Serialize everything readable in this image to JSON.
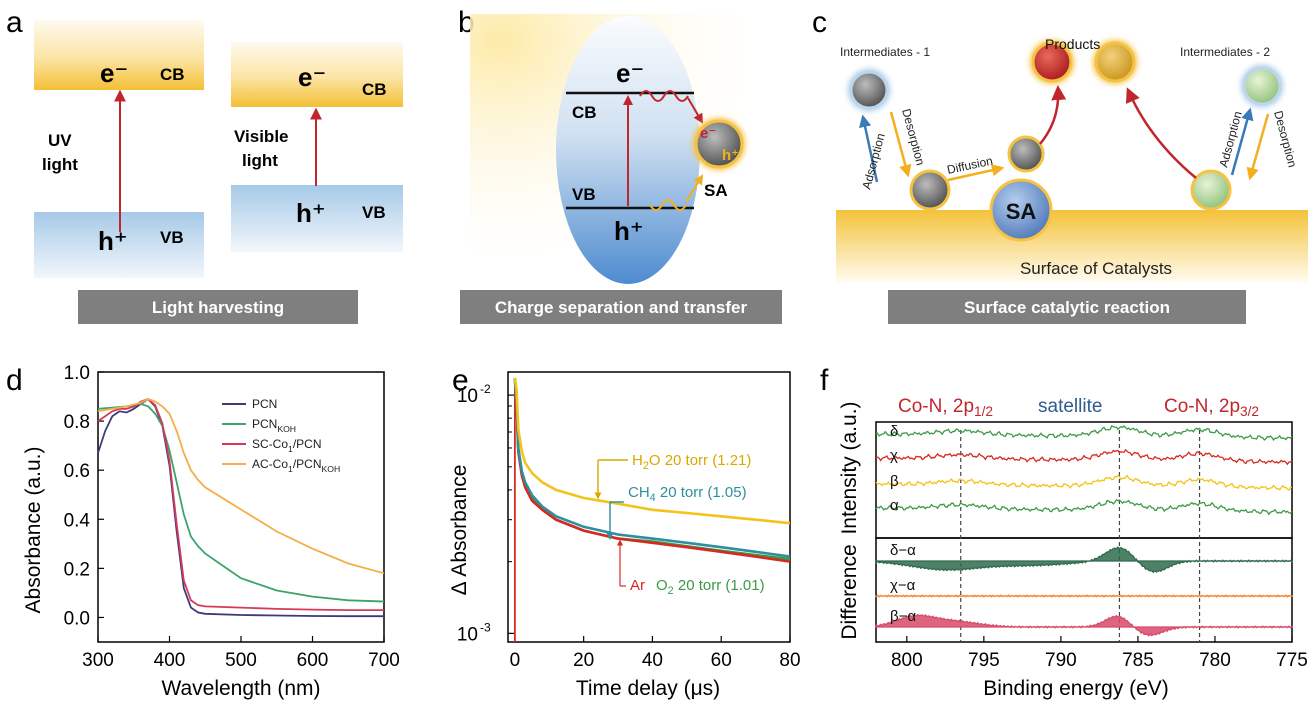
{
  "panels": {
    "a": {
      "label": "a",
      "caption": "Light harvesting",
      "uv": {
        "cb": "CB",
        "vb": "VB",
        "electron": "e⁻",
        "hole": "h⁺",
        "light_line1": "UV",
        "light_line2": "light"
      },
      "visible": {
        "cb": "CB",
        "vb": "VB",
        "electron": "e⁻",
        "hole": "h⁺",
        "light_line1": "Visible",
        "light_line2": "light"
      }
    },
    "b": {
      "label": "b",
      "caption": "Charge separation and transfer",
      "cb": "CB",
      "vb": "VB",
      "electron": "e⁻",
      "hole": "h⁺",
      "sa_electron": "e⁻",
      "sa_hole": "h⁺",
      "sa": "SA"
    },
    "c": {
      "label": "c",
      "caption": "Surface catalytic reaction",
      "products": "Products",
      "intermediates1": "Intermediates - 1",
      "intermediates2": "Intermediates - 2",
      "adsorption_left": "Adsorption",
      "desorption_left": "Desorption",
      "diffusion": "Diffusion",
      "adsorption_right": "Adsorption",
      "desorption_right": "Desorption",
      "sa": "SA",
      "surface": "Surface of Catalysts"
    },
    "d": {
      "label": "d"
    },
    "e": {
      "label": "e"
    },
    "f": {
      "label": "f"
    }
  },
  "colors": {
    "bar": "#7f7f7f",
    "cb_gold": "#f5c242",
    "vb_blue": "#a9cbe6",
    "arrow_red": "#c0272d",
    "sa_blue": "#6f93c9"
  },
  "chart_data": [
    {
      "id": "d",
      "type": "line",
      "xlabel": "Wavelength (nm)",
      "ylabel": "Absorbance (a.u.)",
      "xlim": [
        300,
        700
      ],
      "ylim": [
        -0.1,
        1.0
      ],
      "xticks": [
        300,
        400,
        500,
        600,
        700
      ],
      "yticks": [
        0.0,
        0.2,
        0.4,
        0.6,
        0.8,
        1.0
      ],
      "xtick_labels": [
        "300",
        "400",
        "500",
        "600",
        "700"
      ],
      "ytick_labels": [
        "0.0",
        "0.2",
        "0.4",
        "0.6",
        "0.8",
        "1.0"
      ],
      "legend_position": "top-right",
      "series": [
        {
          "name": "PCN",
          "name_main": "PCN",
          "name_sub": "",
          "name_tail": "",
          "color": "#3d3a7a",
          "x": [
            300,
            310,
            320,
            330,
            340,
            350,
            360,
            370,
            380,
            390,
            400,
            410,
            420,
            430,
            440,
            450,
            500,
            550,
            600,
            650,
            700
          ],
          "y": [
            0.67,
            0.76,
            0.82,
            0.84,
            0.835,
            0.85,
            0.87,
            0.89,
            0.86,
            0.78,
            0.62,
            0.35,
            0.12,
            0.04,
            0.02,
            0.015,
            0.01,
            0.008,
            0.006,
            0.005,
            0.005
          ]
        },
        {
          "name": "PCNKOH",
          "name_main": "PCN",
          "name_sub": "KOH",
          "name_tail": "",
          "color": "#3da36a",
          "x": [
            300,
            320,
            340,
            360,
            370,
            380,
            390,
            400,
            410,
            420,
            430,
            440,
            450,
            470,
            500,
            550,
            600,
            650,
            700
          ],
          "y": [
            0.85,
            0.855,
            0.86,
            0.87,
            0.86,
            0.83,
            0.78,
            0.68,
            0.55,
            0.42,
            0.33,
            0.29,
            0.26,
            0.22,
            0.16,
            0.11,
            0.085,
            0.07,
            0.065
          ]
        },
        {
          "name": "SC-Co1/PCN",
          "name_main": "SC-Co",
          "name_sub": "1",
          "name_tail": "/PCN",
          "color": "#d63a5a",
          "x": [
            300,
            310,
            320,
            330,
            340,
            350,
            360,
            370,
            380,
            390,
            400,
            410,
            420,
            430,
            440,
            450,
            500,
            550,
            600,
            650,
            700
          ],
          "y": [
            0.8,
            0.82,
            0.84,
            0.85,
            0.85,
            0.86,
            0.88,
            0.89,
            0.865,
            0.79,
            0.64,
            0.38,
            0.15,
            0.07,
            0.05,
            0.045,
            0.04,
            0.035,
            0.032,
            0.03,
            0.03
          ]
        },
        {
          "name": "AC-Co1/PCNKOH",
          "name_main": "AC-Co",
          "name_sub": "1",
          "name_tail": "/PCN",
          "name_sub2": "KOH",
          "color": "#f5ad45",
          "x": [
            300,
            320,
            340,
            360,
            370,
            380,
            390,
            400,
            410,
            420,
            430,
            440,
            450,
            500,
            550,
            600,
            650,
            700
          ],
          "y": [
            0.84,
            0.85,
            0.86,
            0.875,
            0.89,
            0.88,
            0.86,
            0.83,
            0.76,
            0.67,
            0.6,
            0.56,
            0.53,
            0.44,
            0.35,
            0.28,
            0.22,
            0.18
          ]
        }
      ]
    },
    {
      "id": "e",
      "type": "line",
      "xlabel": "Time delay (μs)",
      "ylabel": "Δ Absorbance",
      "xlim": [
        -2,
        80
      ],
      "ylim": [
        0.00092,
        0.0125
      ],
      "yscale": "log",
      "xticks": [
        0,
        20,
        40,
        60,
        80
      ],
      "xtick_labels": [
        "0",
        "20",
        "40",
        "60",
        "80"
      ],
      "ytick_labels": [
        {
          "base": "10",
          "exp": "-2",
          "value": 0.01
        },
        {
          "base": "10",
          "exp": "-3",
          "value": 0.001
        }
      ],
      "series": [
        {
          "name": "H2O 20 torr (1.21)",
          "color": "#f2c318",
          "x": [
            0.5,
            1,
            2,
            3,
            5,
            8,
            12,
            20,
            30,
            40,
            50,
            60,
            70,
            80
          ],
          "y": [
            0.0105,
            0.0072,
            0.0058,
            0.0052,
            0.0047,
            0.0043,
            0.004,
            0.0037,
            0.0035,
            0.0033,
            0.0032,
            0.0031,
            0.003,
            0.0029
          ]
        },
        {
          "name": "CH4 20 torr (1.05)",
          "color": "#2d8fa0",
          "x": [
            0.5,
            1,
            2,
            3,
            5,
            8,
            12,
            20,
            30,
            40,
            50,
            60,
            70,
            80
          ],
          "y": [
            0.0095,
            0.006,
            0.0048,
            0.0043,
            0.0038,
            0.0034,
            0.0031,
            0.0028,
            0.0026,
            0.0025,
            0.0024,
            0.0023,
            0.0022,
            0.0021
          ]
        },
        {
          "name": "Ar",
          "color": "#d62a20",
          "x": [
            0.5,
            1,
            2,
            3,
            5,
            8,
            12,
            20,
            30,
            40,
            50,
            60,
            70,
            80
          ],
          "y": [
            0.009,
            0.0058,
            0.0046,
            0.0041,
            0.0036,
            0.0033,
            0.003,
            0.0027,
            0.0025,
            0.0024,
            0.0023,
            0.0022,
            0.0021,
            0.002
          ]
        },
        {
          "name": "O2 20 torr (1.01)",
          "color": "#3a9a48",
          "x": [
            0.5,
            1,
            2,
            3,
            5,
            8,
            12,
            20,
            30,
            40,
            50,
            60,
            70,
            80
          ],
          "y": [
            0.0092,
            0.0059,
            0.0047,
            0.0042,
            0.0037,
            0.0033,
            0.003,
            0.0027,
            0.0025,
            0.00243,
            0.00232,
            0.00222,
            0.00213,
            0.00205
          ]
        }
      ],
      "annotations": [
        {
          "main": "H",
          "sub": "2",
          "tail": "O 20 torr (1.21)",
          "color": "#d9a800"
        },
        {
          "main": "CH",
          "sub": "4",
          "tail": " 20 torr (1.05)",
          "color": "#2d8fa0"
        },
        {
          "main": "Ar",
          "sub": "",
          "tail": "",
          "color": "#d62a20"
        },
        {
          "main": "O",
          "sub": "2",
          "tail": " 20 torr (1.01)",
          "color": "#3a9a48"
        }
      ]
    },
    {
      "id": "f",
      "type": "line",
      "xlabel": "Binding energy (eV)",
      "ylabel_top": "Intensity (a.u.)",
      "ylabel_bottom": "Difference",
      "xlim": [
        802,
        775
      ],
      "xticks": [
        800,
        795,
        790,
        785,
        780,
        775
      ],
      "xtick_labels": [
        "800",
        "795",
        "790",
        "785",
        "780",
        "775"
      ],
      "dashed_lines_x": [
        796.5,
        786.2,
        781.0
      ],
      "peak_labels": [
        {
          "main": "Co-N, 2p",
          "sub": "1/2",
          "color": "#c0272d"
        },
        {
          "main": "satellite",
          "sub": "",
          "color": "#2f5b8e"
        },
        {
          "main": "Co-N, 2p",
          "sub": "3/2",
          "color": "#c0272d"
        }
      ],
      "intensity_series": [
        {
          "name": "δ",
          "color": "#3f9a48",
          "offset": 3
        },
        {
          "name": "χ",
          "color": "#d62a20",
          "offset": 2
        },
        {
          "name": "β",
          "color": "#f2c318",
          "offset": 1
        },
        {
          "name": "α",
          "color": "#3f9a48",
          "offset": 0
        }
      ],
      "difference_series": [
        {
          "name": "δ−α",
          "color": "#2f6b4c"
        },
        {
          "name": "χ−α",
          "color": "#f5862b"
        },
        {
          "name": "β−α",
          "color": "#d84a6a"
        }
      ]
    }
  ]
}
